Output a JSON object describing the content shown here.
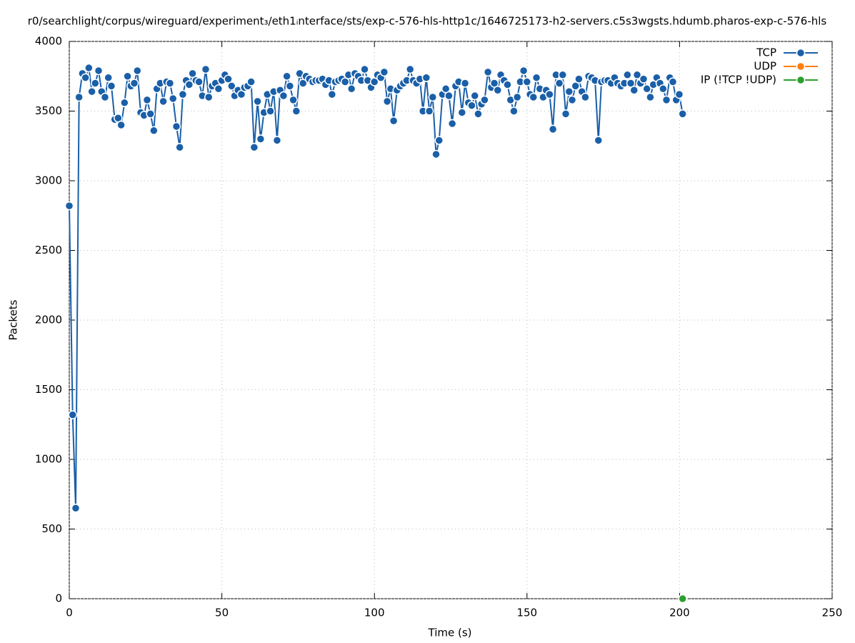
{
  "chart_data": {
    "type": "line",
    "title": "r0/searchlight/corpus/wireguard/experiment₃/eth1ᵢnterface/sts/exp-c-576-hls-http1c/1646725173-h2-servers.c5s3wgsts.hdumb.pharos-exp-c-576-hls",
    "x_label": "Time (s)",
    "y_label": "Packets",
    "xlim": [
      0,
      250
    ],
    "xticks": [
      0,
      50,
      100,
      150,
      200,
      250
    ],
    "ylim": [
      0,
      4000
    ],
    "yticks": [
      0,
      500,
      1000,
      1500,
      2000,
      2500,
      3000,
      3500,
      4000
    ],
    "grid": true,
    "legend": "top-right",
    "series": [
      {
        "name": "TCP",
        "color": "#1a5fa8",
        "x": [
          0,
          1.1,
          2.1,
          3.2,
          4.3,
          5.3,
          6.4,
          7.4,
          8.5,
          9.6,
          10.6,
          11.7,
          12.8,
          13.8,
          14.9,
          16.0,
          17.0,
          18.1,
          19.1,
          20.2,
          21.3,
          22.3,
          23.4,
          24.5,
          25.5,
          26.6,
          27.7,
          28.7,
          29.8,
          30.8,
          31.9,
          33.0,
          34.0,
          35.1,
          36.2,
          37.2,
          38.3,
          39.3,
          40.4,
          41.5,
          42.5,
          43.6,
          44.7,
          45.7,
          46.8,
          47.9,
          48.9,
          50.0,
          51.0,
          52.1,
          53.2,
          54.2,
          55.3,
          56.4,
          57.4,
          58.5,
          59.6,
          60.6,
          61.7,
          62.7,
          63.8,
          64.9,
          65.9,
          67.0,
          68.1,
          69.1,
          70.2,
          71.3,
          72.3,
          73.4,
          74.4,
          75.5,
          76.6,
          77.6,
          78.7,
          79.8,
          80.8,
          81.9,
          83.0,
          84.0,
          85.1,
          86.1,
          87.2,
          88.3,
          89.3,
          90.4,
          91.5,
          92.5,
          93.6,
          94.7,
          95.7,
          96.8,
          97.8,
          98.9,
          100.0,
          101.0,
          102.1,
          103.2,
          104.2,
          105.3,
          106.3,
          107.4,
          108.5,
          109.5,
          110.6,
          111.7,
          112.7,
          113.8,
          114.9,
          115.9,
          117.0,
          118.0,
          119.1,
          120.2,
          121.2,
          122.3,
          123.4,
          124.4,
          125.5,
          126.6,
          127.6,
          128.7,
          129.7,
          130.8,
          131.9,
          132.9,
          134.0,
          135.1,
          136.1,
          137.2,
          138.3,
          139.3,
          140.4,
          141.4,
          142.5,
          143.6,
          144.6,
          145.7,
          146.8,
          147.8,
          148.9,
          150.0,
          151.0,
          152.1,
          153.1,
          154.2,
          155.3,
          156.3,
          157.4,
          158.5,
          159.5,
          160.6,
          161.7,
          162.7,
          163.8,
          164.8,
          165.9,
          167.0,
          168.0,
          169.1,
          170.2,
          171.2,
          172.3,
          173.4,
          174.4,
          175.5,
          176.5,
          177.6,
          178.7,
          179.7,
          180.8,
          181.9,
          182.9,
          184.0,
          185.1,
          186.1,
          187.2,
          188.2,
          189.3,
          190.4,
          191.4,
          192.5,
          193.6,
          194.6,
          195.7,
          196.8,
          197.8,
          198.9,
          199.9,
          201.0
        ],
        "values": [
          2820,
          1320,
          650,
          3600,
          3770,
          3740,
          3810,
          3640,
          3700,
          3790,
          3640,
          3600,
          3740,
          3680,
          3440,
          3450,
          3400,
          3560,
          3750,
          3680,
          3700,
          3790,
          3490,
          3470,
          3580,
          3480,
          3360,
          3660,
          3700,
          3570,
          3710,
          3700,
          3590,
          3390,
          3240,
          3620,
          3720,
          3690,
          3770,
          3720,
          3710,
          3610,
          3800,
          3600,
          3680,
          3700,
          3660,
          3720,
          3760,
          3730,
          3680,
          3610,
          3650,
          3620,
          3670,
          3680,
          3710,
          3240,
          3570,
          3300,
          3490,
          3620,
          3500,
          3640,
          3290,
          3650,
          3610,
          3750,
          3680,
          3580,
          3500,
          3770,
          3700,
          3750,
          3730,
          3710,
          3720,
          3720,
          3730,
          3690,
          3720,
          3620,
          3710,
          3720,
          3730,
          3710,
          3760,
          3660,
          3770,
          3750,
          3720,
          3800,
          3720,
          3670,
          3710,
          3760,
          3740,
          3780,
          3570,
          3660,
          3430,
          3650,
          3680,
          3700,
          3720,
          3800,
          3720,
          3700,
          3730,
          3500,
          3740,
          3500,
          3600,
          3190,
          3290,
          3620,
          3660,
          3610,
          3410,
          3680,
          3710,
          3490,
          3700,
          3560,
          3540,
          3610,
          3480,
          3550,
          3580,
          3780,
          3670,
          3700,
          3650,
          3760,
          3720,
          3690,
          3580,
          3500,
          3600,
          3710,
          3790,
          3710,
          3620,
          3600,
          3740,
          3660,
          3600,
          3650,
          3620,
          3370,
          3760,
          3700,
          3760,
          3480,
          3640,
          3580,
          3680,
          3730,
          3640,
          3600,
          3750,
          3740,
          3720,
          3290,
          3710,
          3720,
          3720,
          3700,
          3740,
          3700,
          3680,
          3700,
          3760,
          3700,
          3650,
          3760,
          3700,
          3730,
          3660,
          3600,
          3690,
          3740,
          3700,
          3660,
          3580,
          3740,
          3710,
          3580,
          3620,
          3480
        ]
      },
      {
        "name": "UDP",
        "color": "#ff7f0e",
        "x": [
          201.0
        ],
        "values": [
          0
        ]
      },
      {
        "name": "IP (!TCP  !UDP)",
        "color": "#2ca02c",
        "x": [
          201.0
        ],
        "values": [
          0
        ]
      }
    ]
  }
}
